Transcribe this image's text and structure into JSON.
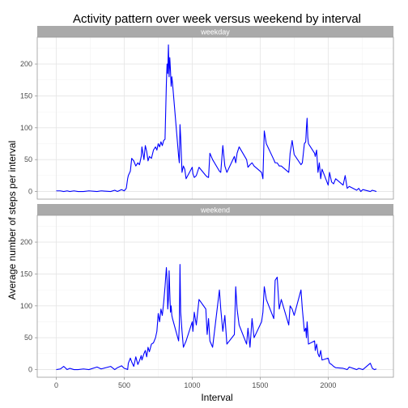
{
  "chart_data": {
    "type": "line",
    "title": "Activity pattern over week versus weekend by interval",
    "xlabel": "Interval",
    "ylabel": "Average number of steps per interval",
    "xlim": [
      -140,
      2480
    ],
    "ylim": [
      -12,
      242
    ],
    "x_ticks": [
      0,
      500,
      1000,
      1500,
      2000
    ],
    "x_tick_labels": [
      "0",
      "500",
      "1000",
      "1500",
      "2000"
    ],
    "y_ticks": [
      0,
      50,
      100,
      150,
      200
    ],
    "y_tick_labels": [
      "0",
      "50",
      "100",
      "150",
      "200"
    ],
    "grid": true,
    "line_color": "#0000ff",
    "panel_border_color": "#999999",
    "strip_color": "#aaaaaa",
    "panels": [
      {
        "strip_label": "weekday",
        "x": [
          0,
          30,
          55,
          80,
          100,
          130,
          160,
          200,
          240,
          300,
          330,
          400,
          430,
          450,
          480,
          500,
          515,
          525,
          530,
          545,
          555,
          570,
          585,
          600,
          612,
          625,
          630,
          645,
          655,
          665,
          675,
          685,
          700,
          715,
          730,
          740,
          750,
          760,
          770,
          780,
          790,
          800,
          810,
          815,
          820,
          825,
          830,
          835,
          840,
          845,
          850,
          855,
          900,
          905,
          910,
          915,
          925,
          935,
          945,
          955,
          1000,
          1005,
          1015,
          1030,
          1050,
          1100,
          1110,
          1120,
          1130,
          1150,
          1200,
          1210,
          1225,
          1240,
          1255,
          1310,
          1320,
          1330,
          1345,
          1400,
          1410,
          1425,
          1440,
          1455,
          1510,
          1520,
          1530,
          1545,
          1600,
          1610,
          1625,
          1640,
          1655,
          1710,
          1720,
          1735,
          1750,
          1800,
          1810,
          1825,
          1835,
          1840,
          1845,
          1850,
          1855,
          1900,
          1905,
          1915,
          1925,
          1935,
          1945,
          1955,
          2000,
          2010,
          2025,
          2040,
          2055,
          2110,
          2125,
          2140,
          2155,
          2210,
          2225,
          2240,
          2255,
          2310,
          2325,
          2340,
          2355
        ],
        "y": [
          1,
          1,
          0,
          1,
          0,
          1,
          0,
          0,
          1,
          0,
          1,
          0,
          2,
          0,
          3,
          1,
          5,
          20,
          25,
          32,
          52,
          48,
          40,
          45,
          42,
          55,
          70,
          50,
          72,
          63,
          48,
          55,
          52,
          65,
          70,
          65,
          75,
          70,
          78,
          72,
          80,
          82,
          170,
          200,
          185,
          230,
          180,
          210,
          190,
          165,
          180,
          170,
          55,
          45,
          105,
          85,
          30,
          40,
          35,
          20,
          38,
          28,
          22,
          25,
          38,
          25,
          23,
          22,
          60,
          50,
          32,
          30,
          72,
          40,
          30,
          55,
          45,
          60,
          70,
          50,
          38,
          42,
          45,
          40,
          30,
          20,
          95,
          75,
          50,
          45,
          45,
          40,
          40,
          30,
          60,
          80,
          58,
          42,
          45,
          75,
          78,
          100,
          115,
          85,
          75,
          60,
          55,
          65,
          30,
          45,
          20,
          35,
          10,
          30,
          15,
          12,
          20,
          10,
          25,
          5,
          8,
          2,
          5,
          0,
          3,
          0,
          2,
          1,
          0
        ]
      },
      {
        "strip_label": "weekend",
        "x": [
          0,
          30,
          55,
          80,
          100,
          130,
          160,
          200,
          240,
          300,
          330,
          400,
          430,
          450,
          480,
          500,
          515,
          525,
          530,
          545,
          555,
          570,
          585,
          600,
          612,
          625,
          630,
          645,
          655,
          665,
          675,
          685,
          700,
          715,
          730,
          740,
          750,
          760,
          770,
          780,
          790,
          800,
          810,
          815,
          820,
          825,
          830,
          835,
          840,
          845,
          850,
          855,
          900,
          905,
          910,
          915,
          925,
          935,
          945,
          955,
          1000,
          1005,
          1015,
          1030,
          1050,
          1100,
          1110,
          1120,
          1130,
          1150,
          1200,
          1210,
          1225,
          1240,
          1255,
          1310,
          1320,
          1330,
          1345,
          1400,
          1410,
          1425,
          1440,
          1455,
          1510,
          1520,
          1530,
          1545,
          1600,
          1610,
          1625,
          1640,
          1655,
          1710,
          1720,
          1735,
          1750,
          1800,
          1810,
          1825,
          1835,
          1840,
          1845,
          1850,
          1855,
          1900,
          1905,
          1915,
          1925,
          1935,
          1945,
          1955,
          2000,
          2010,
          2025,
          2040,
          2055,
          2110,
          2125,
          2140,
          2155,
          2210,
          2225,
          2240,
          2255,
          2310,
          2325,
          2340,
          2355
        ],
        "y": [
          0,
          1,
          5,
          0,
          2,
          0,
          0,
          1,
          0,
          4,
          1,
          5,
          0,
          3,
          6,
          2,
          1,
          0,
          10,
          18,
          12,
          5,
          20,
          8,
          14,
          22,
          15,
          25,
          30,
          20,
          35,
          28,
          40,
          42,
          50,
          60,
          88,
          75,
          95,
          85,
          105,
          130,
          160,
          140,
          95,
          110,
          155,
          120,
          90,
          100,
          85,
          80,
          45,
          70,
          165,
          90,
          60,
          35,
          40,
          45,
          75,
          60,
          90,
          70,
          110,
          95,
          55,
          80,
          45,
          35,
          125,
          95,
          60,
          85,
          40,
          55,
          130,
          95,
          70,
          40,
          65,
          35,
          80,
          50,
          75,
          90,
          130,
          110,
          80,
          140,
          145,
          95,
          110,
          70,
          100,
          95,
          85,
          125,
          95,
          60,
          65,
          50,
          75,
          60,
          40,
          45,
          30,
          40,
          25,
          20,
          30,
          15,
          18,
          10,
          8,
          5,
          3,
          2,
          1,
          0,
          4,
          0,
          2,
          1,
          0,
          10,
          2,
          0,
          1
        ]
      }
    ]
  }
}
